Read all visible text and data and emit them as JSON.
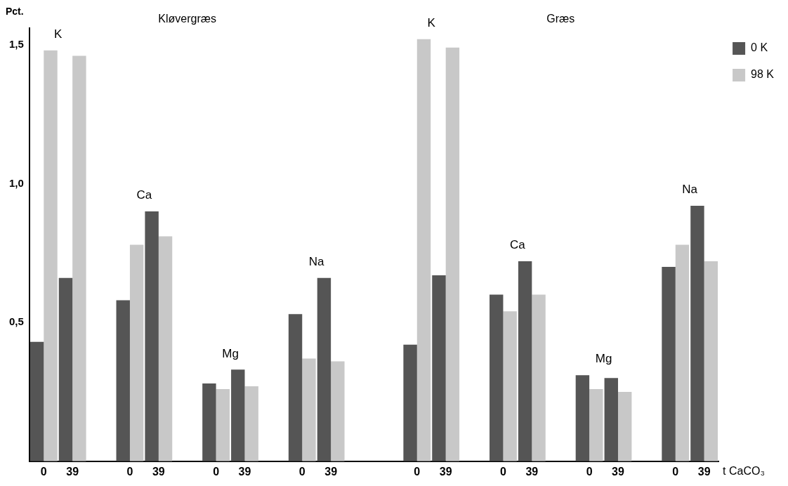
{
  "chart_data": {
    "type": "bar",
    "categories": [
      "0",
      "39",
      null,
      "0",
      "39",
      null,
      "0",
      "39",
      null,
      "0",
      "39",
      null,
      null,
      "0",
      "39",
      null,
      "0",
      "39",
      null,
      "0",
      "39",
      null,
      "0",
      "39"
    ],
    "series": [
      {
        "name": "0 K",
        "color": "#555555",
        "values": [
          0.43,
          0.66,
          null,
          0.58,
          0.9,
          null,
          0.28,
          0.33,
          null,
          0.53,
          0.66,
          null,
          null,
          0.42,
          0.67,
          null,
          0.6,
          0.72,
          null,
          0.31,
          0.3,
          null,
          0.7,
          0.92
        ]
      },
      {
        "name": "98 K",
        "color": "#c8c8c8",
        "values": [
          1.48,
          1.46,
          null,
          0.78,
          0.81,
          null,
          0.26,
          0.27,
          null,
          0.37,
          0.36,
          null,
          null,
          1.52,
          1.49,
          null,
          0.54,
          0.6,
          null,
          0.26,
          0.25,
          null,
          0.78,
          0.72
        ]
      }
    ],
    "ylabel": "Pct.",
    "xlabel": "t CaCO₃",
    "ylim": [
      0,
      1.56
    ],
    "yticks": [
      {
        "value": 0.5,
        "label": "0,5"
      },
      {
        "value": 1,
        "label": "1,0"
      },
      {
        "value": 1.5,
        "label": "1,5"
      }
    ],
    "annotations": [
      "K",
      "Ca",
      "Mg",
      "Na",
      "K",
      "Ca",
      "Mg",
      "Na",
      "Kløvergræs",
      "Græs"
    ],
    "legend": "top right",
    "grid": false
  }
}
